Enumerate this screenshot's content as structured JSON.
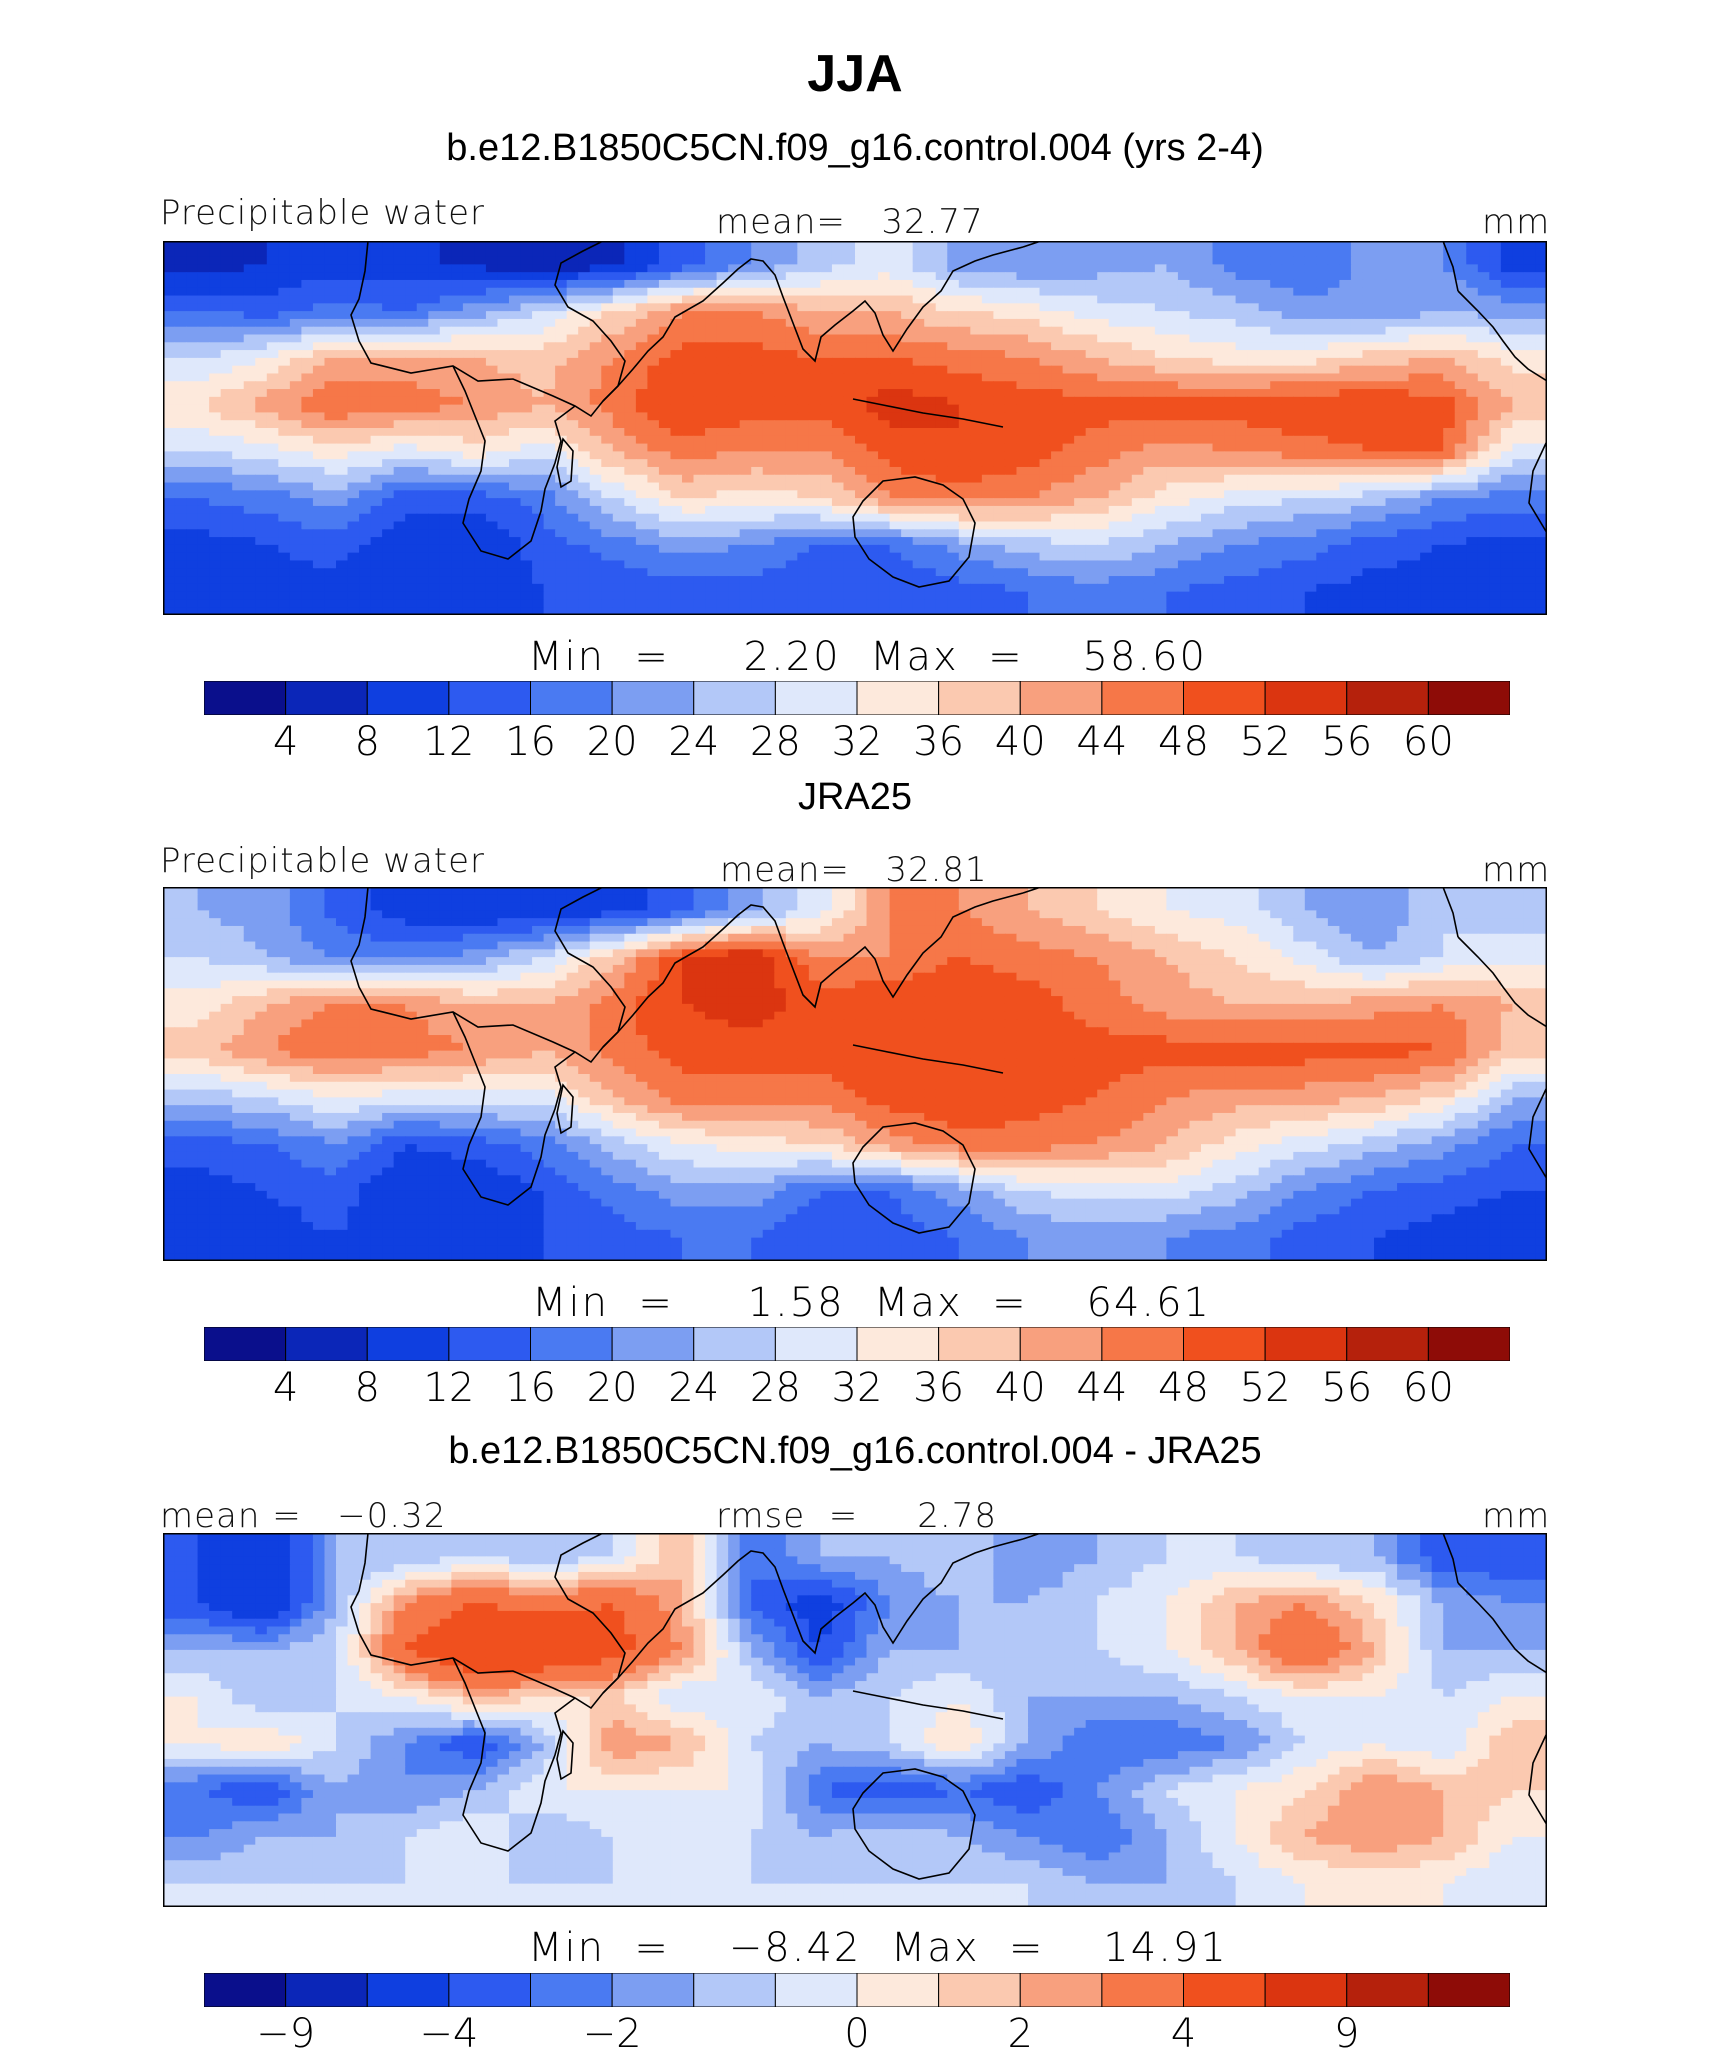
{
  "title": "JJA",
  "colors": [
    "#0a0f8c",
    "#0b26b8",
    "#0f3fe0",
    "#2d5af0",
    "#4a7af2",
    "#7c9ef2",
    "#b3c8f8",
    "#dfe8fb",
    "#fde9dc",
    "#fbc9b0",
    "#f8a07e",
    "#f67748",
    "#f0501e",
    "#db3510",
    "#b5210c",
    "#8e0c07"
  ],
  "panels": [
    {
      "title": "b.e12.B1850C5CN.f09_g16.control.004 (yrs 2-4)",
      "left_label": "Precipitable water",
      "center_label": "mean=   32.77",
      "right_label": "mm",
      "minmax": "Min  =     2.20  Max  =    58.60",
      "tick_labels": [
        "4",
        "8",
        "12",
        "16",
        "20",
        "24",
        "28",
        "32",
        "36",
        "40",
        "44",
        "48",
        "52",
        "56",
        "60"
      ]
    },
    {
      "title": "JRA25",
      "left_label": "Precipitable water",
      "center_label": "mean=   32.81",
      "right_label": "mm",
      "minmax": "Min  =     1.58  Max  =    64.61",
      "tick_labels": [
        "4",
        "8",
        "12",
        "16",
        "20",
        "24",
        "28",
        "32",
        "36",
        "40",
        "44",
        "48",
        "52",
        "56",
        "60"
      ]
    },
    {
      "title": "b.e12.B1850C5CN.f09_g16.control.004 - JRA25",
      "left_label": "mean =   −0.32",
      "center_label": "rmse  =     2.78",
      "right_label": "mm",
      "minmax": "Min  =    −8.42  Max  =    14.91",
      "tick_labels": [
        "−9",
        "−4",
        "−2",
        "0",
        "2",
        "4",
        "9"
      ]
    }
  ],
  "chart_data": [
    {
      "type": "heatmap",
      "title": "b.e12.B1850C5CN.f09_g16.control.004 (yrs 2-4)",
      "variable": "Precipitable water",
      "units": "mm",
      "mean": 32.77,
      "min": 2.2,
      "max": 58.6,
      "contour_levels": [
        4,
        8,
        12,
        16,
        20,
        24,
        28,
        32,
        36,
        40,
        44,
        48,
        52,
        56,
        60
      ],
      "field": [
        [
          6,
          8,
          10,
          9,
          7,
          5,
          6,
          14,
          20,
          26,
          30,
          22,
          20,
          22,
          24,
          18,
          16,
          22,
          20,
          10
        ],
        [
          16,
          14,
          18,
          16,
          22,
          28,
          36,
          44,
          44,
          40,
          40,
          36,
          34,
          30,
          28,
          26,
          22,
          20,
          24,
          22
        ],
        [
          28,
          32,
          40,
          42,
          40,
          38,
          44,
          50,
          50,
          48,
          48,
          46,
          44,
          40,
          36,
          34,
          34,
          38,
          40,
          34
        ],
        [
          36,
          42,
          48,
          46,
          44,
          40,
          46,
          52,
          50,
          50,
          54,
          52,
          50,
          50,
          50,
          50,
          52,
          52,
          50,
          40
        ],
        [
          28,
          30,
          34,
          30,
          34,
          30,
          40,
          46,
          44,
          44,
          50,
          52,
          50,
          46,
          42,
          44,
          46,
          48,
          48,
          30
        ],
        [
          16,
          18,
          22,
          14,
          14,
          18,
          28,
          36,
          34,
          36,
          44,
          46,
          44,
          40,
          34,
          30,
          28,
          26,
          20,
          18
        ],
        [
          10,
          12,
          14,
          8,
          8,
          14,
          18,
          22,
          20,
          16,
          16,
          22,
          26,
          28,
          24,
          20,
          18,
          14,
          12,
          10
        ],
        [
          8,
          10,
          10,
          8,
          8,
          12,
          12,
          14,
          14,
          12,
          12,
          14,
          16,
          18,
          16,
          14,
          12,
          10,
          10,
          8
        ]
      ]
    },
    {
      "type": "heatmap",
      "title": "JRA25",
      "variable": "Precipitable water",
      "units": "mm",
      "mean": 32.81,
      "min": 1.58,
      "max": 64.61,
      "contour_levels": [
        4,
        8,
        12,
        16,
        20,
        24,
        28,
        32,
        36,
        40,
        44,
        48,
        52,
        56,
        60
      ],
      "field": [
        [
          24,
          22,
          14,
          10,
          8,
          8,
          10,
          14,
          22,
          30,
          44,
          44,
          40,
          36,
          32,
          30,
          24,
          20,
          28,
          26
        ],
        [
          28,
          24,
          20,
          18,
          22,
          28,
          38,
          52,
          56,
          44,
          44,
          48,
          46,
          44,
          40,
          36,
          30,
          24,
          28,
          30
        ],
        [
          34,
          40,
          44,
          44,
          40,
          40,
          46,
          52,
          54,
          50,
          52,
          52,
          50,
          46,
          42,
          40,
          40,
          42,
          44,
          40
        ],
        [
          38,
          44,
          48,
          46,
          44,
          40,
          46,
          50,
          50,
          50,
          52,
          50,
          50,
          50,
          50,
          50,
          50,
          50,
          48,
          38
        ],
        [
          26,
          28,
          32,
          30,
          30,
          30,
          40,
          46,
          46,
          46,
          50,
          52,
          50,
          48,
          44,
          42,
          42,
          40,
          36,
          24
        ],
        [
          14,
          16,
          20,
          12,
          14,
          18,
          26,
          32,
          34,
          36,
          42,
          46,
          46,
          44,
          40,
          34,
          30,
          26,
          22,
          16
        ],
        [
          10,
          12,
          14,
          8,
          8,
          12,
          18,
          22,
          22,
          16,
          16,
          22,
          28,
          30,
          30,
          26,
          20,
          16,
          14,
          12
        ],
        [
          8,
          10,
          12,
          8,
          8,
          12,
          14,
          16,
          16,
          12,
          14,
          16,
          20,
          22,
          20,
          18,
          14,
          12,
          10,
          8
        ]
      ]
    },
    {
      "type": "heatmap",
      "title": "b.e12.B1850C5CN.f09_g16.control.004 - JRA25",
      "units": "mm",
      "mean": -0.32,
      "rmse": 2.78,
      "min": -8.42,
      "max": 14.91,
      "contour_levels": [
        -9,
        -6,
        -4,
        -3,
        -2,
        -1,
        0,
        1,
        2,
        3,
        4,
        6,
        9
      ],
      "field": [
        [
          -4,
          -6,
          -1,
          -1,
          0,
          -1,
          0,
          3,
          -3,
          -1,
          -1,
          0,
          -2,
          -1,
          0,
          0,
          -1,
          -1,
          -4,
          -4
        ],
        [
          -4,
          -6,
          -1,
          4,
          6,
          5,
          6,
          3,
          -3,
          -5,
          -2,
          -1,
          -1,
          0,
          1,
          3,
          4,
          2,
          -1,
          -2
        ],
        [
          -1,
          -1,
          0,
          6,
          9,
          9,
          7,
          4,
          -1,
          -4,
          -1,
          -1,
          0,
          0,
          1,
          3,
          6,
          3,
          -1,
          -1
        ],
        [
          1,
          -1,
          0,
          1,
          3,
          2,
          2,
          0,
          1,
          -1,
          0,
          1,
          -1,
          -1,
          -1,
          0,
          1,
          1,
          0,
          1
        ],
        [
          1,
          2,
          0,
          -2,
          -4,
          -1,
          4,
          3,
          0,
          -1,
          0,
          2,
          -1,
          -3,
          -3,
          -2,
          0,
          1,
          0,
          3
        ],
        [
          -3,
          -4,
          -1,
          -2,
          -1,
          1,
          1,
          1,
          1,
          -3,
          -4,
          -3,
          -4,
          -2,
          0,
          1,
          2,
          4,
          3,
          2
        ],
        [
          -2,
          -1,
          -1,
          0,
          1,
          -1,
          0,
          0,
          0,
          -1,
          0,
          -1,
          -2,
          -3,
          -1,
          1,
          3,
          4,
          3,
          1
        ],
        [
          0,
          0,
          0,
          0,
          0,
          0,
          0,
          0,
          0,
          0,
          0,
          0,
          0,
          -1,
          -1,
          0,
          1,
          1,
          1,
          0
        ]
      ]
    }
  ]
}
